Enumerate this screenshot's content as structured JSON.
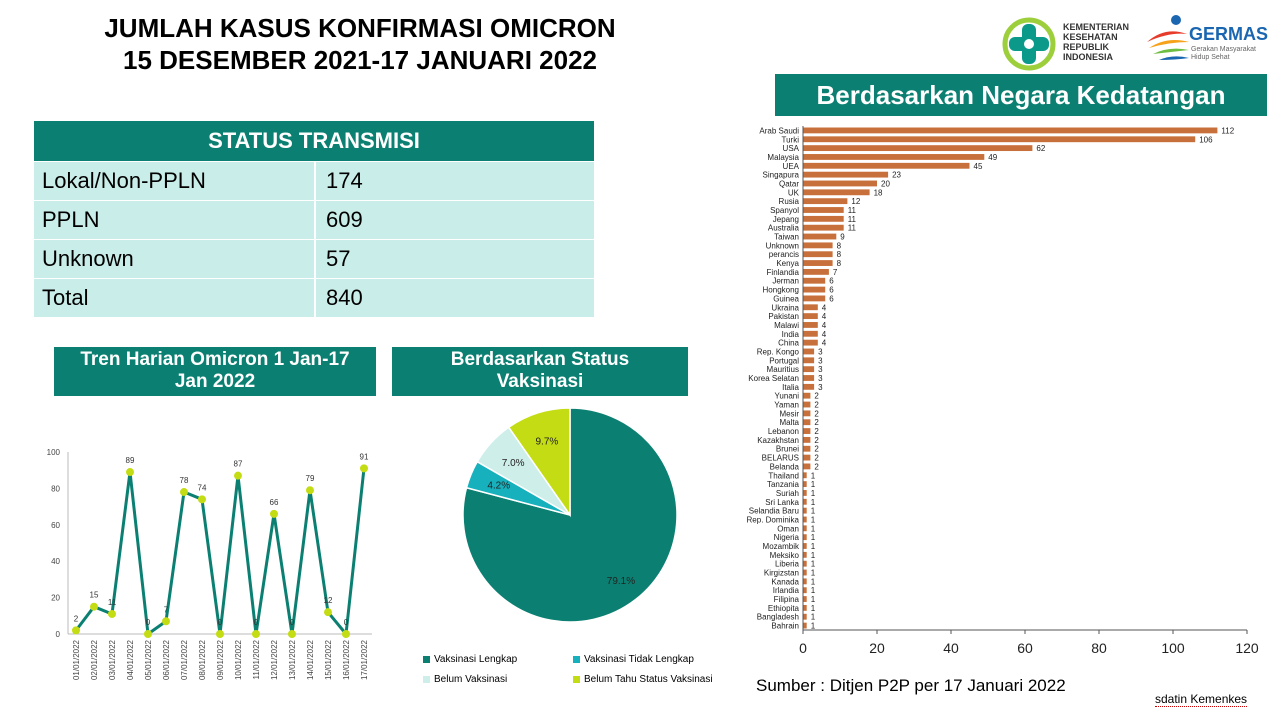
{
  "header": {
    "title_line1": "JUMLAH KASUS KONFIRMASI OMICRON",
    "title_line2": "15 DESEMBER 2021-17 JANUARI 2022"
  },
  "logos": {
    "kemenkes_line1": "KEMENTERIAN",
    "kemenkes_line2": "KESEHATAN",
    "kemenkes_line3": "REPUBLIK",
    "kemenkes_line4": "INDONESIA",
    "germas": "GERMAS",
    "germas_sub1": "Gerakan Masyarakat",
    "germas_sub2": "Hidup Sehat"
  },
  "status_transmisi": {
    "title": "STATUS TRANSMISI",
    "rows": [
      {
        "label": "Lokal/Non-PPLN",
        "value": "174"
      },
      {
        "label": "PPLN",
        "value": "609"
      },
      {
        "label": "Unknown",
        "value": "57"
      },
      {
        "label": "Total",
        "value": "840"
      }
    ]
  },
  "panels": {
    "tren_title_line1": "Tren Harian Omicron 1 Jan-17",
    "tren_title_line2": "Jan 2022",
    "vaks_title_line1": "Berdasarkan Status",
    "vaks_title_line2": "Vaksinasi",
    "country_title": "Berdasarkan Negara Kedatangan"
  },
  "colors": {
    "teal": "#0b8072",
    "bar": "#c8703b",
    "marker": "#c4dc14",
    "pie": [
      "#0b8072",
      "#16b1bd",
      "#cdeee9",
      "#c4dc14"
    ]
  },
  "chart_data": [
    {
      "type": "line",
      "x": [
        "01/01/2022",
        "02/01/2022",
        "03/01/2022",
        "04/01/2022",
        "05/01/2022",
        "06/01/2022",
        "07/01/2022",
        "08/01/2022",
        "09/01/2022",
        "10/01/2022",
        "11/01/2022",
        "12/01/2022",
        "13/01/2022",
        "14/01/2022",
        "15/01/2022",
        "16/01/2022",
        "17/01/2022"
      ],
      "values": [
        2,
        15,
        11,
        89,
        0,
        7,
        78,
        74,
        0,
        87,
        0,
        66,
        0,
        79,
        12,
        0,
        91
      ],
      "labels": [
        "2",
        "15",
        "11",
        "89",
        "0",
        "7",
        "78",
        "74",
        "0",
        "87",
        "0",
        "66",
        "0",
        "79",
        "12",
        "0",
        "91"
      ],
      "ylim": [
        0,
        100
      ],
      "yticks": [
        "0",
        "20",
        "40",
        "60",
        "80",
        "100"
      ],
      "grid": false
    },
    {
      "type": "pie",
      "slices": [
        {
          "name": "Vaksinasi Lengkap",
          "value": 79.1,
          "label": "79.1%"
        },
        {
          "name": "Vaksinasi Tidak Lengkap",
          "value": 4.2,
          "label": "4.2%"
        },
        {
          "name": "Belum Vaksinasi",
          "value": 7.0,
          "label": "7.0%"
        },
        {
          "name": "Belum Tahu Status Vaksinasi",
          "value": 9.7,
          "label": "9.7%"
        }
      ],
      "legend": "bottom"
    },
    {
      "type": "bar",
      "orientation": "horizontal",
      "categories": [
        "Arab Saudi",
        "Turki",
        "USA",
        "Malaysia",
        "UEA",
        "Singapura",
        "Qatar",
        "UK",
        "Rusia",
        "Spanyol",
        "Jepang",
        "Australia",
        "Taiwan",
        "Unknown",
        "perancis",
        "Kenya",
        "Finlandia",
        "Jerman",
        "Hongkong",
        "Guinea",
        "Ukraina",
        "Pakistan",
        "Malawi",
        "India",
        "China",
        "Rep. Kongo",
        "Portugal",
        "Mauritius",
        "Korea Selatan",
        "Italia",
        "Yunani",
        "Yaman",
        "Mesir",
        "Malta",
        "Lebanon",
        "Kazakhstan",
        "Brunei",
        "BELARUS",
        "Belanda",
        "Thailand",
        "Tanzania",
        "Suriah",
        "Sri Lanka",
        "Selandia Baru",
        "Rep. Dominika",
        "Oman",
        "Nigeria",
        "Mozambik",
        "Meksiko",
        "Liberia",
        "Kirgizstan",
        "Kanada",
        "Irlandia",
        "Filipina",
        "Ethiopita",
        "Bangladesh",
        "Bahrain"
      ],
      "values": [
        112,
        106,
        62,
        49,
        45,
        23,
        20,
        18,
        12,
        11,
        11,
        11,
        9,
        8,
        8,
        8,
        7,
        6,
        6,
        6,
        4,
        4,
        4,
        4,
        4,
        3,
        3,
        3,
        3,
        3,
        2,
        2,
        2,
        2,
        2,
        2,
        2,
        2,
        2,
        1,
        1,
        1,
        1,
        1,
        1,
        1,
        1,
        1,
        1,
        1,
        1,
        1,
        1,
        1,
        1,
        1,
        1
      ],
      "xlim": [
        0,
        120
      ],
      "xticks": [
        "0",
        "20",
        "40",
        "60",
        "80",
        "100",
        "120"
      ],
      "source": "Sumber : Ditjen P2P  per 17 Januari  2022"
    }
  ],
  "footer": {
    "credit": "sdatin Kemenkes"
  }
}
